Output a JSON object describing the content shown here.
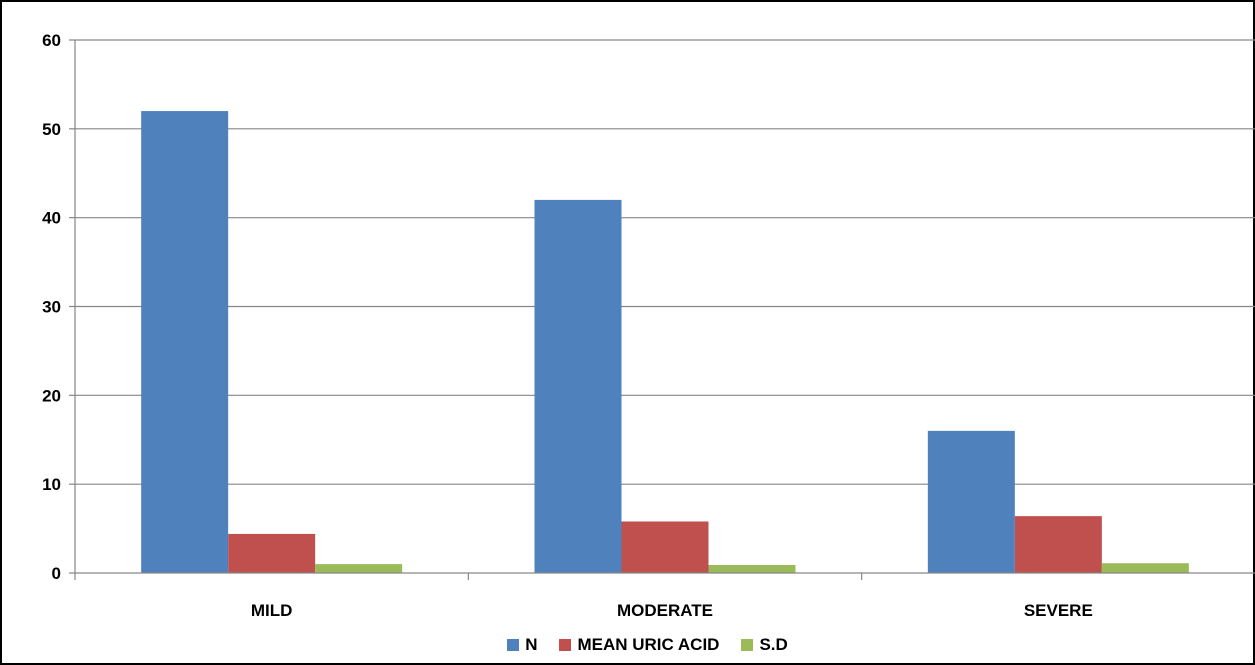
{
  "chart_data": {
    "type": "bar",
    "title": "",
    "xlabel": "",
    "ylabel": "",
    "categories": [
      "MILD",
      "MODERATE",
      "SEVERE"
    ],
    "series": [
      {
        "name": "N",
        "values": [
          52,
          42,
          16
        ],
        "color": "#4F81BD"
      },
      {
        "name": "MEAN URIC ACID",
        "values": [
          4.4,
          5.8,
          6.4
        ],
        "color": "#C0504D"
      },
      {
        "name": "S.D",
        "values": [
          1.0,
          0.9,
          1.1
        ],
        "color": "#9BBB59"
      }
    ],
    "ylim": [
      0,
      60
    ],
    "yticks": [
      0,
      10,
      20,
      30,
      40,
      50,
      60
    ],
    "grid": true,
    "legend_position": "bottom"
  }
}
